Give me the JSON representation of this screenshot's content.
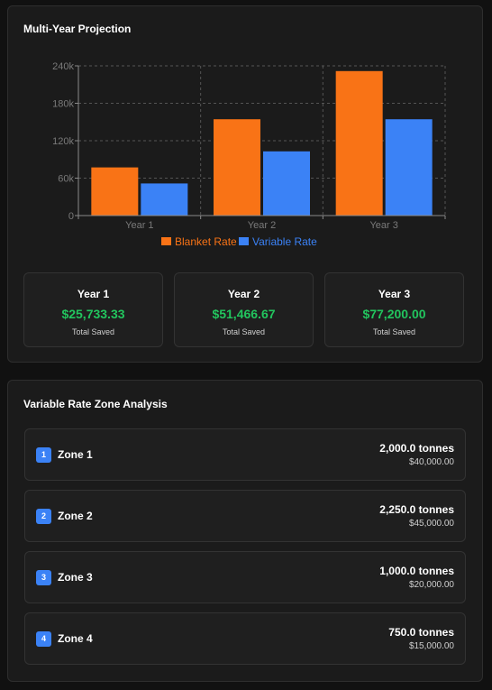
{
  "projection": {
    "title": "Multi-Year Projection",
    "cards": [
      {
        "year": "Year 1",
        "value": "$25,733.33",
        "caption": "Total Saved"
      },
      {
        "year": "Year 2",
        "value": "$51,466.67",
        "caption": "Total Saved"
      },
      {
        "year": "Year 3",
        "value": "$77,200.00",
        "caption": "Total Saved"
      }
    ]
  },
  "chart_data": {
    "type": "bar",
    "categories": [
      "Year 1",
      "Year 2",
      "Year 3"
    ],
    "series": [
      {
        "name": "Blanket Rate",
        "color": "#f97316",
        "values": [
          77200,
          154400,
          231600
        ]
      },
      {
        "name": "Variable Rate",
        "color": "#3b82f6",
        "values": [
          51466.67,
          102933.33,
          154400
        ]
      }
    ],
    "yticks": [
      0,
      60000,
      120000,
      180000,
      240000
    ],
    "ytick_labels": [
      "0",
      "60k",
      "120k",
      "180k",
      "240k"
    ],
    "ylim": [
      0,
      240000
    ],
    "grid": true,
    "legend_position": "bottom"
  },
  "zones": {
    "title": "Variable Rate Zone Analysis",
    "items": [
      {
        "number": "1",
        "name": "Zone 1",
        "tonnes": "2,000.0 tonnes",
        "cost": "$40,000.00"
      },
      {
        "number": "2",
        "name": "Zone 2",
        "tonnes": "2,250.0 tonnes",
        "cost": "$45,000.00"
      },
      {
        "number": "3",
        "name": "Zone 3",
        "tonnes": "1,000.0 tonnes",
        "cost": "$20,000.00"
      },
      {
        "number": "4",
        "name": "Zone 4",
        "tonnes": "750.0 tonnes",
        "cost": "$15,000.00"
      }
    ]
  }
}
